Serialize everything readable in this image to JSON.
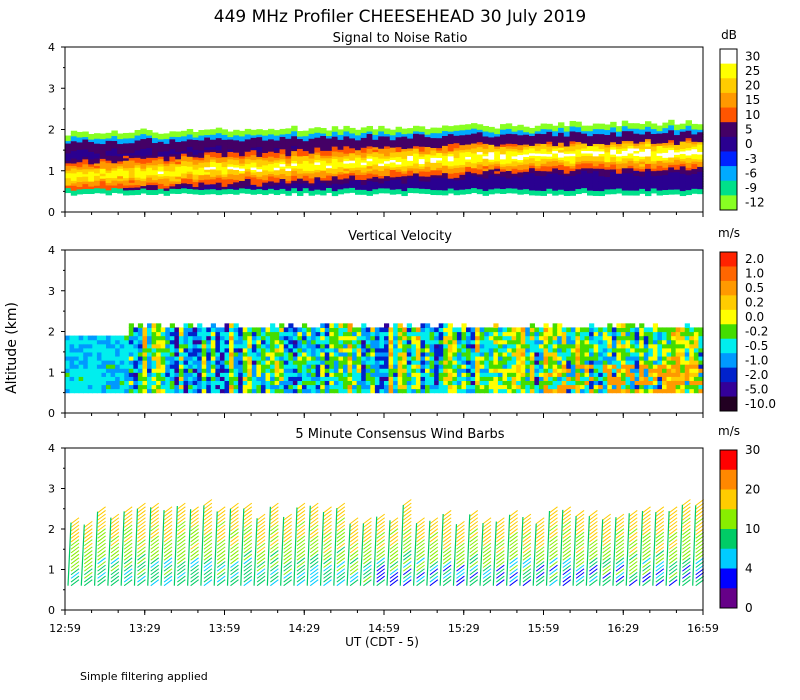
{
  "figure_title": "449 MHz Profiler CHEESEHEAD 30 July 2019",
  "y_axis_label": "Altitude (km)",
  "x_axis_label": "UT  (CDT - 5)",
  "footnote": "Simple filtering applied",
  "x_tick_labels": [
    "12:59",
    "13:29",
    "13:59",
    "14:29",
    "14:59",
    "15:29",
    "15:59",
    "16:29",
    "16:59"
  ],
  "y_tick_labels": [
    "0",
    "1",
    "2",
    "3",
    "4"
  ],
  "chart_data": [
    {
      "type": "heatmap",
      "title": "Signal to Noise Ratio",
      "units": "dB",
      "xlim": [
        "12:59",
        "16:59"
      ],
      "ylim": [
        0,
        4
      ],
      "colorbar_labels": [
        "30",
        "25",
        "20",
        "15",
        "10",
        "5",
        "0",
        "-3",
        "-6",
        "-9",
        "-12"
      ],
      "colorbar_colors": [
        "#ffffff",
        "#ffff00",
        "#ffcc00",
        "#ff9900",
        "#ff5500",
        "#440066",
        "#2a0090",
        "#0022ff",
        "#00aaff",
        "#00e08a",
        "#88ff22"
      ],
      "description_data": {
        "echo_bottom_km": 0.4,
        "echo_top_km": 2.1,
        "peak_layer_km": [
          0.8,
          1.6
        ]
      }
    },
    {
      "type": "heatmap",
      "title": "Vertical Velocity",
      "units": "m/s",
      "xlim": [
        "12:59",
        "16:59"
      ],
      "ylim": [
        0,
        4
      ],
      "colorbar_labels": [
        "2.0",
        "1.0",
        "0.5",
        "0.2",
        "0.0",
        "-0.2",
        "-0.5",
        "-1.0",
        "-2.0",
        "-5.0",
        "-10.0"
      ],
      "colorbar_colors": [
        "#ff2200",
        "#ff6600",
        "#ff9900",
        "#ffcc00",
        "#ffff00",
        "#44dd00",
        "#00eeee",
        "#0099ff",
        "#0022cc",
        "#330099",
        "#220022"
      ],
      "description_data": {
        "echo_bottom_km": 0.5,
        "echo_top_km": 2.1
      }
    },
    {
      "type": "wind_barbs",
      "title": "5 Minute Consensus Wind Barbs",
      "units": "m/s",
      "xlim": [
        "12:59",
        "16:59"
      ],
      "ylim": [
        0,
        4
      ],
      "colorbar_labels": [
        "30",
        "20",
        "10",
        "4",
        "0"
      ],
      "colorbar_colors": [
        "#ff0000",
        "#ff8800",
        "#ffcc00",
        "#88ee00",
        "#00cc66",
        "#00ccff",
        "#0000ff",
        "#660088"
      ],
      "description_data": {
        "lowest_barb_km": 0.6,
        "highest_barb_km": 2.7
      }
    }
  ]
}
